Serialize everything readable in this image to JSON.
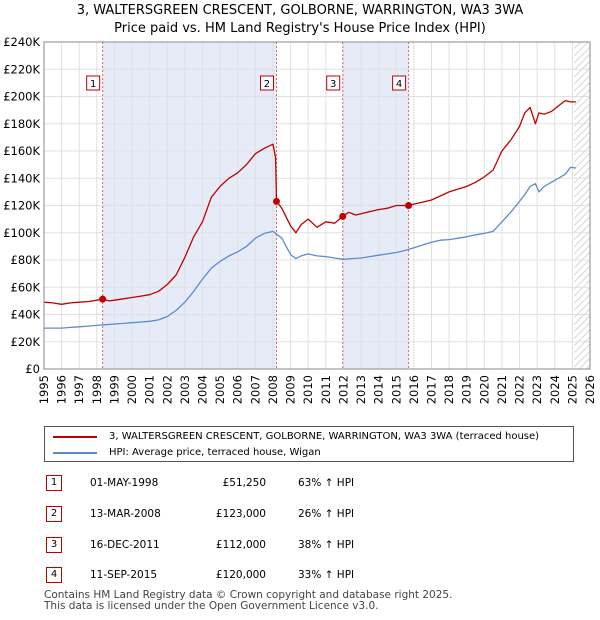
{
  "title": {
    "line1": "3, WALTERSGREEN CRESCENT, GOLBORNE, WARRINGTON, WA3 3WA",
    "line2": "Price paid vs. HM Land Registry's House Price Index (HPI)"
  },
  "legend": {
    "items": [
      {
        "label": "3, WALTERSGREEN CRESCENT, GOLBORNE, WARRINGTON, WA3 3WA (terraced house)",
        "color": "#c00000"
      },
      {
        "label": "HPI: Average price, terraced house, Wigan",
        "color": "#5b8ccc"
      }
    ]
  },
  "sales": [
    {
      "num": "1",
      "date": "01-MAY-1998",
      "price": "£51,250",
      "hpi": "63% ↑ HPI"
    },
    {
      "num": "2",
      "date": "13-MAR-2008",
      "price": "£123,000",
      "hpi": "26% ↑ HPI"
    },
    {
      "num": "3",
      "date": "16-DEC-2011",
      "price": "£112,000",
      "hpi": "38% ↑ HPI"
    },
    {
      "num": "4",
      "date": "11-SEP-2015",
      "price": "£120,000",
      "hpi": "33% ↑ HPI"
    }
  ],
  "footer": {
    "line1": "Contains HM Land Registry data © Crown copyright and database right 2025.",
    "line2": "This data is licensed under the Open Government Licence v3.0."
  },
  "chart_data": {
    "type": "line",
    "xlim": [
      1995,
      2026
    ],
    "ylim": [
      0,
      240000
    ],
    "x_ticks": [
      1995,
      1996,
      1997,
      1998,
      1999,
      2000,
      2001,
      2002,
      2003,
      2004,
      2005,
      2006,
      2007,
      2008,
      2009,
      2010,
      2011,
      2012,
      2013,
      2014,
      2015,
      2016,
      2017,
      2018,
      2019,
      2020,
      2021,
      2022,
      2023,
      2024,
      2025,
      2026
    ],
    "y_ticks": [
      {
        "value": 0,
        "label": "£0"
      },
      {
        "value": 20000,
        "label": "£20K"
      },
      {
        "value": 40000,
        "label": "£40K"
      },
      {
        "value": 60000,
        "label": "£60K"
      },
      {
        "value": 80000,
        "label": "£80K"
      },
      {
        "value": 100000,
        "label": "£100K"
      },
      {
        "value": 120000,
        "label": "£120K"
      },
      {
        "value": 140000,
        "label": "£140K"
      },
      {
        "value": 160000,
        "label": "£160K"
      },
      {
        "value": 180000,
        "label": "£180K"
      },
      {
        "value": 200000,
        "label": "£200K"
      },
      {
        "value": 220000,
        "label": "£220K"
      },
      {
        "value": 240000,
        "label": "£240K"
      }
    ],
    "grid": true,
    "shaded_periods": [
      [
        1998.33,
        2008.2
      ],
      [
        2011.96,
        2015.7
      ]
    ],
    "hatched_period": [
      2025.1,
      2026
    ],
    "markers": [
      {
        "label": "1",
        "x": 1998.33,
        "y": 51250
      },
      {
        "label": "2",
        "x": 2008.2,
        "y": 123000
      },
      {
        "label": "3",
        "x": 2011.96,
        "y": 112000
      },
      {
        "label": "4",
        "x": 2015.7,
        "y": 120000
      }
    ],
    "series": [
      {
        "name": "3, WALTERSGREEN CRESCENT, GOLBORNE, WARRINGTON, WA3 3WA (terraced house)",
        "color": "#c00000",
        "x": [
          1995,
          1995.5,
          1996,
          1996.5,
          1997,
          1997.5,
          1998,
          1998.33,
          1998.7,
          1999,
          1999.5,
          2000,
          2000.5,
          2001,
          2001.5,
          2002,
          2002.5,
          2003,
          2003.5,
          2004,
          2004.5,
          2005,
          2005.5,
          2006,
          2006.5,
          2007,
          2007.5,
          2008,
          2008.15,
          2008.2,
          2008.5,
          2009,
          2009.3,
          2009.6,
          2010,
          2010.5,
          2011,
          2011.5,
          2011.96,
          2012.3,
          2012.7,
          2013,
          2013.5,
          2014,
          2014.5,
          2015,
          2015.7,
          2016,
          2016.5,
          2017,
          2017.5,
          2018,
          2018.5,
          2019,
          2019.5,
          2020,
          2020.5,
          2021,
          2021.5,
          2022,
          2022.3,
          2022.6,
          2022.9,
          2023.1,
          2023.4,
          2023.8,
          2024.2,
          2024.6,
          2024.9,
          2025.2
        ],
        "values": [
          49000,
          48500,
          47500,
          48500,
          49000,
          49500,
          50500,
          51250,
          50000,
          50500,
          51500,
          52500,
          53500,
          54500,
          57000,
          62000,
          69000,
          82000,
          97000,
          108000,
          126000,
          134000,
          140000,
          144000,
          150000,
          158000,
          162000,
          165000,
          155000,
          123000,
          118000,
          105000,
          100000,
          106000,
          110000,
          104000,
          108000,
          107000,
          112000,
          115000,
          113000,
          114000,
          115500,
          117000,
          118000,
          120000,
          120000,
          121000,
          122500,
          124000,
          127000,
          130000,
          132000,
          134000,
          137000,
          141000,
          146000,
          160000,
          168000,
          178000,
          188000,
          192000,
          180000,
          188000,
          187000,
          189000,
          193000,
          197000,
          196000,
          196000
        ]
      },
      {
        "name": "HPI: Average price, terraced house, Wigan",
        "color": "#5b8ccc",
        "x": [
          1995,
          1995.5,
          1996,
          1996.5,
          1997,
          1997.5,
          1998,
          1998.5,
          1999,
          1999.5,
          2000,
          2000.5,
          2001,
          2001.5,
          2002,
          2002.5,
          2003,
          2003.5,
          2004,
          2004.5,
          2005,
          2005.5,
          2006,
          2006.5,
          2007,
          2007.5,
          2008,
          2008.5,
          2009,
          2009.3,
          2009.6,
          2010,
          2010.5,
          2011,
          2011.5,
          2012,
          2012.5,
          2013,
          2013.5,
          2014,
          2014.5,
          2015,
          2015.5,
          2016,
          2016.5,
          2017,
          2017.5,
          2018,
          2018.5,
          2019,
          2019.5,
          2020,
          2020.5,
          2021,
          2021.5,
          2022,
          2022.3,
          2022.6,
          2022.9,
          2023.1,
          2023.4,
          2023.8,
          2024.2,
          2024.6,
          2024.9,
          2025.2
        ],
        "values": [
          30000,
          30000,
          30000,
          30500,
          31000,
          31500,
          32000,
          32500,
          33000,
          33500,
          34000,
          34500,
          35000,
          36000,
          38500,
          43000,
          49000,
          57000,
          66000,
          74000,
          79000,
          83000,
          86000,
          90000,
          96000,
          99500,
          101000,
          96000,
          84000,
          81000,
          83000,
          84500,
          83000,
          82500,
          81500,
          80500,
          81000,
          81500,
          82500,
          83500,
          84500,
          85500,
          87000,
          89000,
          91000,
          93000,
          94500,
          95000,
          96000,
          97000,
          98500,
          99500,
          101000,
          108000,
          115000,
          123000,
          128000,
          134000,
          136000,
          130000,
          134000,
          137000,
          140000,
          143000,
          148000,
          147500
        ]
      }
    ]
  }
}
